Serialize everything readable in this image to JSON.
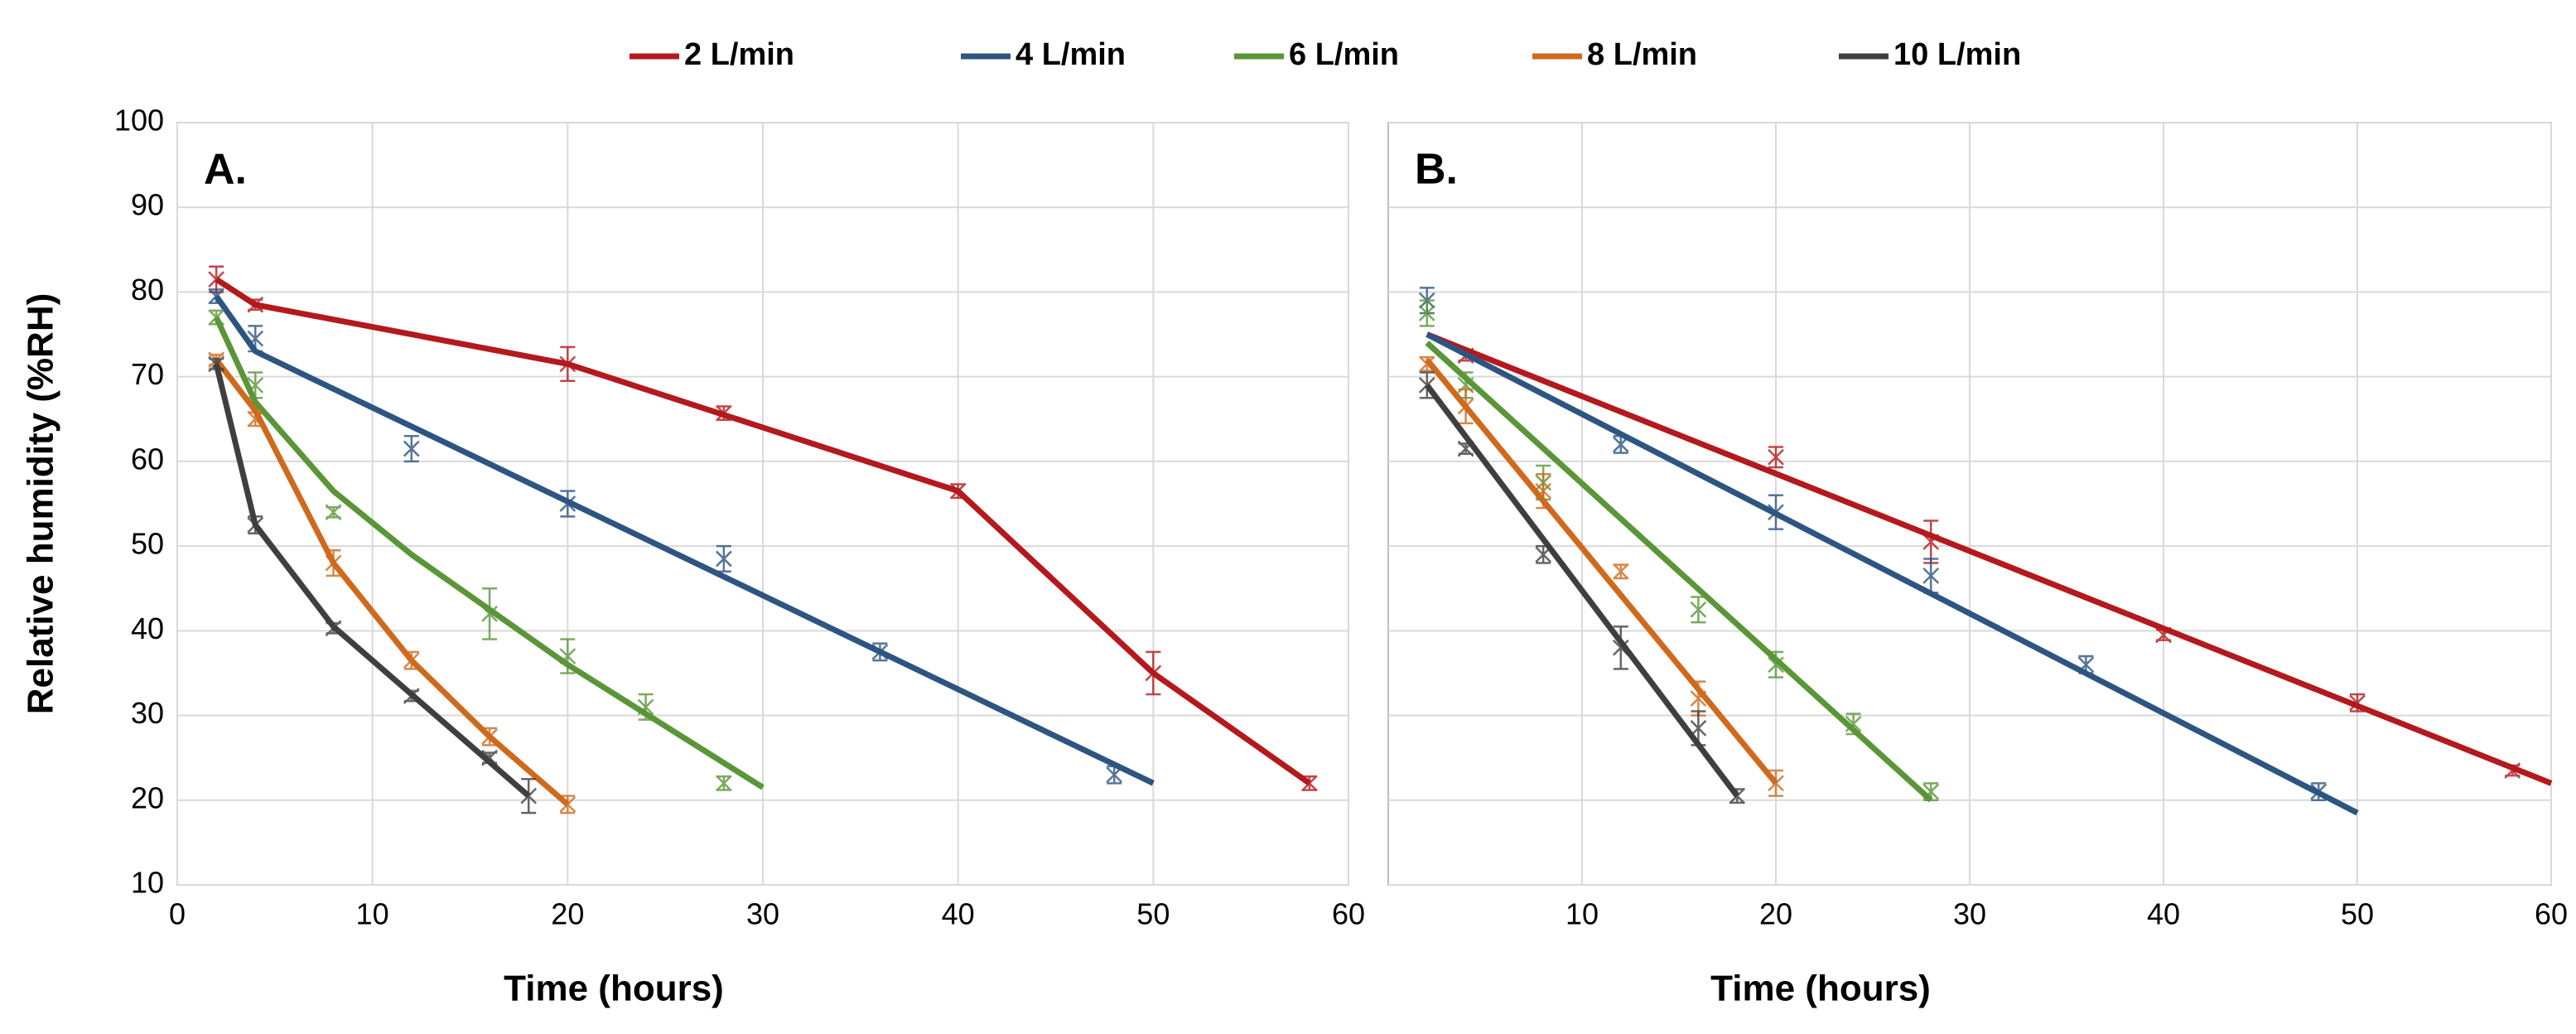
{
  "legend": [
    {
      "name": "2 L/min",
      "color": "#b3191d"
    },
    {
      "name": "4 L/min",
      "color": "#2d5582"
    },
    {
      "name": "6 L/min",
      "color": "#5a9638"
    },
    {
      "name": "8 L/min",
      "color": "#cf6a1d"
    },
    {
      "name": "10 L/min",
      "color": "#3f3f3f"
    }
  ],
  "y_label": "Relative humidity (%RH)",
  "chart_data": [
    {
      "type": "line",
      "panel_label": "A.",
      "x_label": "Time (hours)",
      "xlim": [
        0,
        60
      ],
      "xticks": [
        0,
        10,
        20,
        30,
        40,
        50,
        60
      ],
      "ylim": [
        10,
        100
      ],
      "yticks": [
        10,
        20,
        30,
        40,
        50,
        60,
        70,
        80,
        90,
        100
      ],
      "show_ytick_labels": true,
      "grid": true,
      "series": [
        {
          "x": [
            2,
            4,
            20,
            28,
            40,
            50,
            58
          ],
          "values": [
            81.5,
            78.5,
            71.5,
            65.7,
            56.5,
            35,
            22
          ],
          "errors": [
            1.5,
            0.6,
            2,
            0.8,
            0.8,
            2.5,
            0.8
          ],
          "fit_x": [
            2,
            4,
            20,
            28,
            40,
            50,
            58
          ],
          "fit_values": [
            81.5,
            78.5,
            71.5,
            65.5,
            56.5,
            35,
            22
          ]
        },
        {
          "x": [
            2,
            4,
            12,
            20,
            28,
            36,
            48
          ],
          "values": [
            79.5,
            74.5,
            61.5,
            55,
            48.5,
            37.5,
            23
          ],
          "errors": [
            0.8,
            1.5,
            1.5,
            1.5,
            1.5,
            1,
            1
          ],
          "fit_x": [
            2,
            4,
            50
          ],
          "fit_values": [
            79.5,
            73,
            22
          ]
        },
        {
          "x": [
            2,
            4,
            8,
            16,
            20,
            24,
            28
          ],
          "values": [
            77,
            69,
            54,
            42,
            37,
            31,
            22
          ],
          "errors": [
            0.8,
            1.5,
            0.6,
            3,
            2,
            1.5,
            0.8
          ],
          "fit_x": [
            2,
            4,
            8,
            12,
            20,
            30
          ],
          "fit_values": [
            77,
            67,
            56.5,
            49,
            36,
            21.5
          ]
        },
        {
          "x": [
            2,
            4,
            8,
            12,
            16,
            20
          ],
          "values": [
            72,
            65,
            48,
            36.5,
            27.5,
            19.5
          ],
          "errors": [
            0.6,
            0.8,
            1.5,
            1,
            1,
            1
          ],
          "fit_x": [
            2,
            4,
            8,
            12,
            16,
            20
          ],
          "fit_values": [
            72,
            66,
            48,
            36.5,
            27.5,
            19.5
          ]
        },
        {
          "x": [
            2,
            4,
            8,
            12,
            16,
            18
          ],
          "values": [
            71.5,
            52.5,
            40.3,
            32.3,
            25,
            20.5
          ],
          "errors": [
            0.6,
            1,
            0.6,
            0.6,
            0.6,
            2
          ],
          "fit_x": [
            2,
            4,
            8,
            12,
            18
          ],
          "fit_values": [
            71.5,
            52.5,
            40.5,
            32.5,
            20.5
          ]
        }
      ]
    },
    {
      "type": "line",
      "panel_label": "B.",
      "x_label": "Time (hours)",
      "xlim": [
        0,
        60
      ],
      "xticks": [
        10,
        20,
        30,
        40,
        50,
        60
      ],
      "ylim": [
        10,
        100
      ],
      "yticks": [
        10,
        20,
        30,
        40,
        50,
        60,
        70,
        80,
        90,
        100
      ],
      "show_ytick_labels": false,
      "grid": true,
      "series": [
        {
          "x": [
            4,
            20,
            28,
            40,
            50,
            58
          ],
          "values": [
            72.5,
            60.5,
            50.5,
            39.5,
            31.5,
            23.5
          ],
          "errors": [
            0.6,
            1.2,
            2.5,
            0.6,
            1,
            0.6
          ],
          "fit_x": [
            2,
            60
          ],
          "fit_values": [
            75,
            22
          ]
        },
        {
          "x": [
            2,
            12,
            20,
            28,
            36,
            48
          ],
          "values": [
            79,
            62,
            54,
            46.5,
            36,
            21
          ],
          "errors": [
            1.5,
            1,
            2,
            2,
            1,
            1
          ],
          "fit_x": [
            2,
            50
          ],
          "fit_values": [
            75,
            18.5
          ]
        },
        {
          "x": [
            2,
            4,
            8,
            16,
            20,
            24,
            28
          ],
          "values": [
            77.5,
            69,
            57.5,
            42.5,
            36,
            29,
            21
          ],
          "errors": [
            1.5,
            1.5,
            2,
            1.5,
            1.5,
            1.2,
            1
          ],
          "fit_x": [
            2,
            28
          ],
          "fit_values": [
            74,
            20
          ]
        },
        {
          "x": [
            2,
            4,
            8,
            12,
            16,
            20
          ],
          "values": [
            71.5,
            66.5,
            56.5,
            47,
            32,
            22
          ],
          "errors": [
            0.8,
            2,
            2,
            0.8,
            2,
            1.5
          ],
          "fit_x": [
            2,
            20
          ],
          "fit_values": [
            72,
            22
          ]
        },
        {
          "x": [
            2,
            4,
            8,
            12,
            16,
            18
          ],
          "values": [
            69,
            61.5,
            49,
            38,
            28.5,
            20.5
          ],
          "errors": [
            1.5,
            0.6,
            1,
            2.5,
            2,
            0.8
          ],
          "fit_x": [
            2,
            18
          ],
          "fit_values": [
            69,
            20.5
          ]
        }
      ]
    }
  ]
}
